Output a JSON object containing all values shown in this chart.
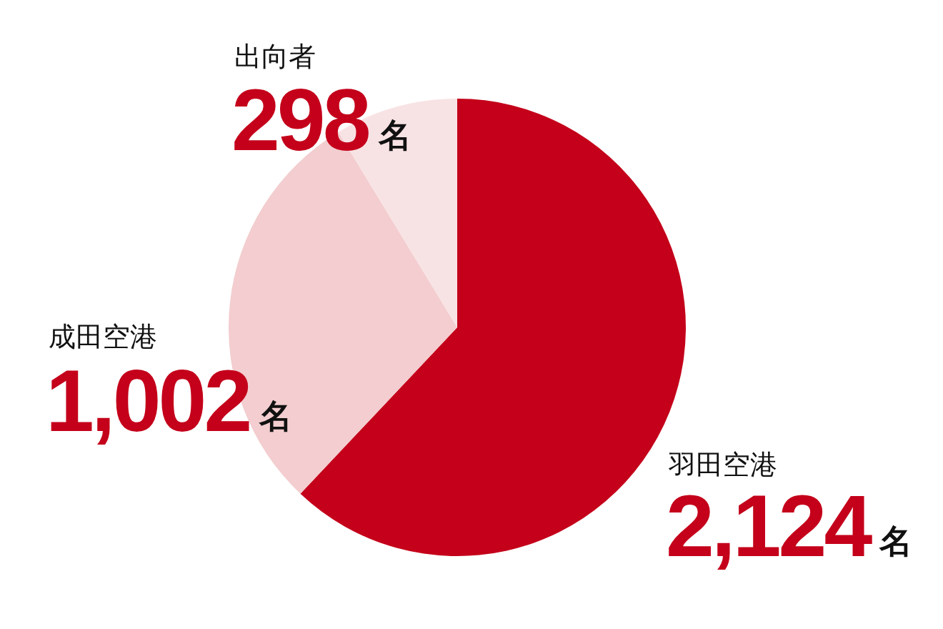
{
  "chart_data": {
    "type": "pie",
    "categories": [
      "羽田空港",
      "成田空港",
      "出向者"
    ],
    "values": [
      2124,
      1002,
      298
    ],
    "colors": [
      "#c4001a",
      "#f3cdcf",
      "#f8e3e4"
    ],
    "value_labels": [
      "2,124",
      "1,002",
      "298"
    ],
    "annotations": [
      "名",
      "名",
      "名"
    ]
  }
}
